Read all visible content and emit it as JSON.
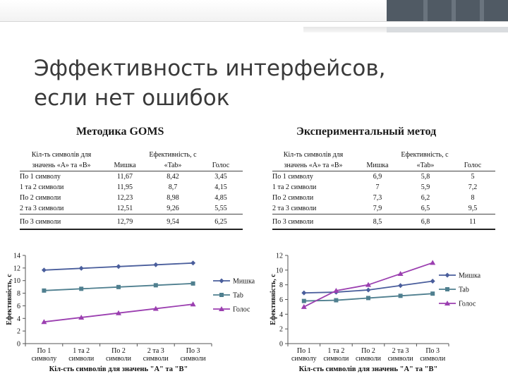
{
  "slide": {
    "title": "Эффективность интерфейсов,\nесли нет ошибок",
    "left_heading": "Методика GOMS",
    "right_heading": "Экспериментальный метод"
  },
  "goms_table": {
    "col1_header_top": "Кіл-ть символів для",
    "col1_header_bottom": "значень «А» та «В»",
    "group_header": "Ефективність, с",
    "sub_headers": [
      "Мишка",
      "«Tab»",
      "Голос"
    ],
    "rows": [
      {
        "label": "По 1 символу",
        "values": [
          "11,67",
          "8,42",
          "3,45"
        ]
      },
      {
        "label": "1 та 2 символи",
        "values": [
          "11,95",
          "8,7",
          "4,15"
        ]
      },
      {
        "label": "По 2 символи",
        "values": [
          "12,23",
          "8,98",
          "4,85"
        ]
      },
      {
        "label": "2 та 3 символи",
        "values": [
          "12,51",
          "9,26",
          "5,55"
        ]
      },
      {
        "label": "По 3 символи",
        "values": [
          "12,79",
          "9,54",
          "6,25"
        ]
      }
    ]
  },
  "exp_table": {
    "col1_header_top": "Кіл-ть символів для",
    "col1_header_bottom": "значень «А» та «В»",
    "group_header": "Ефективність, с",
    "sub_headers": [
      "Мишка",
      "«Tab»",
      "Голос"
    ],
    "rows": [
      {
        "label": "По 1 символу",
        "values": [
          "6,9",
          "5,8",
          "5"
        ]
      },
      {
        "label": "1 та 2 символи",
        "values": [
          "7",
          "5,9",
          "7,2"
        ]
      },
      {
        "label": "По 2 символи",
        "values": [
          "7,3",
          "6,2",
          "8"
        ]
      },
      {
        "label": "2 та 3 символи",
        "values": [
          "7,9",
          "6,5",
          "9,5"
        ]
      },
      {
        "label": "По 3 символи",
        "values": [
          "8,5",
          "6,8",
          "11"
        ]
      }
    ]
  },
  "colors": {
    "mouse": "#4a5e9c",
    "tab": "#4f7f8f",
    "voice": "#9b3fb0",
    "topbar_dark": "#505a64"
  },
  "chart_data": [
    {
      "type": "line",
      "categories": [
        [
          "По 1",
          "символу"
        ],
        [
          "1 та 2",
          "символи"
        ],
        [
          "По 2",
          "символи"
        ],
        [
          "2 та 3",
          "символи"
        ],
        [
          "По 3",
          "символи"
        ]
      ],
      "series": [
        {
          "name": "Мишка",
          "values": [
            11.67,
            11.95,
            12.23,
            12.51,
            12.79
          ],
          "marker": "diamond"
        },
        {
          "name": "Tab",
          "values": [
            8.42,
            8.7,
            8.98,
            9.26,
            9.54
          ],
          "marker": "square"
        },
        {
          "name": "Голос",
          "values": [
            3.45,
            4.15,
            4.85,
            5.55,
            6.25
          ],
          "marker": "triangle"
        }
      ],
      "xlabel": "Кіл-сть символів для значень \"А\" та \"В\"",
      "ylabel": "Ефективність, с",
      "ylim": [
        0,
        14
      ],
      "yticks": [
        "0",
        "2",
        "4",
        "6",
        "8",
        "10",
        "12",
        "14"
      ],
      "legend": "right",
      "grid": false
    },
    {
      "type": "line",
      "categories": [
        [
          "По 1",
          "символу"
        ],
        [
          "1 та 2",
          "символи"
        ],
        [
          "По 2",
          "символи"
        ],
        [
          "2 та 3",
          "символи"
        ],
        [
          "По 3",
          "символи"
        ]
      ],
      "series": [
        {
          "name": "Мишка",
          "values": [
            6.9,
            7,
            7.3,
            7.9,
            8.5
          ],
          "marker": "diamond"
        },
        {
          "name": "Tab",
          "values": [
            5.8,
            5.9,
            6.2,
            6.5,
            6.8
          ],
          "marker": "square"
        },
        {
          "name": "Голос",
          "values": [
            5,
            7.2,
            8,
            9.5,
            11
          ],
          "marker": "triangle"
        }
      ],
      "xlabel": "Кіл-сть символів для значень \"А\" та \"В\"",
      "ylabel": "Ефективність, с",
      "ylim": [
        0,
        12
      ],
      "yticks": [
        "0",
        "2",
        "4",
        "6",
        "8",
        "10",
        "12"
      ],
      "legend": "right",
      "grid": false
    }
  ]
}
